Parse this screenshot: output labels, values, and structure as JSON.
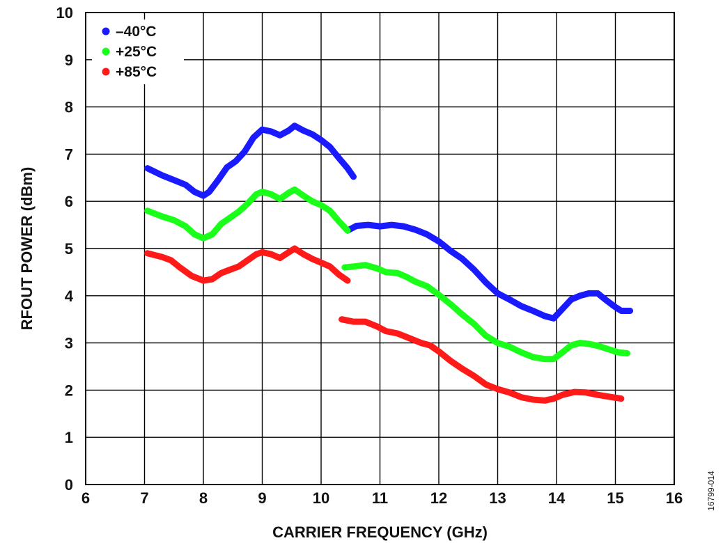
{
  "chart_data": {
    "type": "line",
    "title": "",
    "xlabel": "CARRIER FREQUENCY (GHz)",
    "ylabel": "RFOUT POWER (dBm)",
    "xlim": [
      6,
      16
    ],
    "ylim": [
      0,
      10
    ],
    "xticks": [
      "6",
      "7",
      "8",
      "9",
      "10",
      "11",
      "12",
      "13",
      "14",
      "15",
      "16"
    ],
    "yticks": [
      "0",
      "1",
      "2",
      "3",
      "4",
      "5",
      "6",
      "7",
      "8",
      "9",
      "10"
    ],
    "grid": true,
    "legend_position": "top-left",
    "figure_id": "16799-014",
    "series": [
      {
        "name": "–40°C",
        "color": "#1a1aff",
        "segments": [
          [
            [
              7.05,
              6.7
            ],
            [
              7.3,
              6.55
            ],
            [
              7.5,
              6.45
            ],
            [
              7.7,
              6.35
            ],
            [
              7.85,
              6.2
            ],
            [
              8.0,
              6.12
            ],
            [
              8.1,
              6.2
            ],
            [
              8.25,
              6.45
            ],
            [
              8.4,
              6.72
            ],
            [
              8.55,
              6.85
            ],
            [
              8.7,
              7.05
            ],
            [
              8.85,
              7.35
            ],
            [
              9.0,
              7.52
            ],
            [
              9.15,
              7.48
            ],
            [
              9.3,
              7.4
            ],
            [
              9.45,
              7.5
            ],
            [
              9.55,
              7.6
            ],
            [
              9.7,
              7.5
            ],
            [
              9.85,
              7.42
            ],
            [
              10.0,
              7.3
            ],
            [
              10.15,
              7.15
            ],
            [
              10.3,
              6.92
            ],
            [
              10.45,
              6.7
            ],
            [
              10.55,
              6.52
            ]
          ],
          [
            [
              10.45,
              5.38
            ],
            [
              10.6,
              5.48
            ],
            [
              10.8,
              5.5
            ],
            [
              11.0,
              5.47
            ],
            [
              11.2,
              5.5
            ],
            [
              11.4,
              5.47
            ],
            [
              11.6,
              5.4
            ],
            [
              11.8,
              5.3
            ],
            [
              12.0,
              5.15
            ],
            [
              12.2,
              4.95
            ],
            [
              12.4,
              4.78
            ],
            [
              12.6,
              4.55
            ],
            [
              12.8,
              4.28
            ],
            [
              13.0,
              4.05
            ],
            [
              13.2,
              3.92
            ],
            [
              13.4,
              3.78
            ],
            [
              13.6,
              3.68
            ],
            [
              13.8,
              3.57
            ],
            [
              13.95,
              3.52
            ],
            [
              14.1,
              3.72
            ],
            [
              14.25,
              3.92
            ],
            [
              14.4,
              4.0
            ],
            [
              14.55,
              4.05
            ],
            [
              14.7,
              4.05
            ],
            [
              14.85,
              3.9
            ],
            [
              15.0,
              3.76
            ],
            [
              15.1,
              3.68
            ],
            [
              15.25,
              3.68
            ]
          ]
        ]
      },
      {
        "name": "+25°C",
        "color": "#1aff1a",
        "segments": [
          [
            [
              7.05,
              5.8
            ],
            [
              7.3,
              5.68
            ],
            [
              7.5,
              5.6
            ],
            [
              7.7,
              5.47
            ],
            [
              7.85,
              5.3
            ],
            [
              8.0,
              5.22
            ],
            [
              8.15,
              5.3
            ],
            [
              8.3,
              5.52
            ],
            [
              8.45,
              5.65
            ],
            [
              8.6,
              5.78
            ],
            [
              8.75,
              5.95
            ],
            [
              8.9,
              6.15
            ],
            [
              9.0,
              6.2
            ],
            [
              9.15,
              6.15
            ],
            [
              9.3,
              6.05
            ],
            [
              9.45,
              6.18
            ],
            [
              9.55,
              6.25
            ],
            [
              9.7,
              6.12
            ],
            [
              9.85,
              6.0
            ],
            [
              10.0,
              5.92
            ],
            [
              10.15,
              5.8
            ],
            [
              10.3,
              5.58
            ],
            [
              10.45,
              5.38
            ]
          ],
          [
            [
              10.4,
              4.6
            ],
            [
              10.55,
              4.62
            ],
            [
              10.75,
              4.65
            ],
            [
              10.95,
              4.58
            ],
            [
              11.1,
              4.5
            ],
            [
              11.3,
              4.48
            ],
            [
              11.45,
              4.4
            ],
            [
              11.6,
              4.3
            ],
            [
              11.8,
              4.2
            ],
            [
              12.0,
              4.02
            ],
            [
              12.2,
              3.82
            ],
            [
              12.4,
              3.6
            ],
            [
              12.6,
              3.4
            ],
            [
              12.8,
              3.15
            ],
            [
              13.0,
              3.0
            ],
            [
              13.2,
              2.92
            ],
            [
              13.4,
              2.8
            ],
            [
              13.6,
              2.7
            ],
            [
              13.8,
              2.66
            ],
            [
              13.95,
              2.66
            ],
            [
              14.1,
              2.8
            ],
            [
              14.25,
              2.95
            ],
            [
              14.4,
              3.0
            ],
            [
              14.55,
              2.98
            ],
            [
              14.7,
              2.94
            ],
            [
              14.9,
              2.86
            ],
            [
              15.05,
              2.8
            ],
            [
              15.2,
              2.78
            ]
          ]
        ]
      },
      {
        "name": "+85°C",
        "color": "#ff1a1a",
        "segments": [
          [
            [
              7.05,
              4.9
            ],
            [
              7.3,
              4.82
            ],
            [
              7.45,
              4.75
            ],
            [
              7.6,
              4.6
            ],
            [
              7.8,
              4.42
            ],
            [
              8.0,
              4.32
            ],
            [
              8.15,
              4.35
            ],
            [
              8.3,
              4.48
            ],
            [
              8.45,
              4.55
            ],
            [
              8.6,
              4.62
            ],
            [
              8.75,
              4.75
            ],
            [
              8.9,
              4.88
            ],
            [
              9.0,
              4.92
            ],
            [
              9.15,
              4.88
            ],
            [
              9.3,
              4.8
            ],
            [
              9.45,
              4.92
            ],
            [
              9.55,
              5.0
            ],
            [
              9.7,
              4.88
            ],
            [
              9.85,
              4.78
            ],
            [
              10.0,
              4.7
            ],
            [
              10.15,
              4.62
            ],
            [
              10.3,
              4.45
            ],
            [
              10.45,
              4.32
            ]
          ],
          [
            [
              10.35,
              3.5
            ],
            [
              10.55,
              3.45
            ],
            [
              10.75,
              3.45
            ],
            [
              10.95,
              3.35
            ],
            [
              11.1,
              3.25
            ],
            [
              11.3,
              3.2
            ],
            [
              11.5,
              3.1
            ],
            [
              11.7,
              3.0
            ],
            [
              11.85,
              2.95
            ],
            [
              12.0,
              2.82
            ],
            [
              12.2,
              2.62
            ],
            [
              12.4,
              2.45
            ],
            [
              12.6,
              2.3
            ],
            [
              12.8,
              2.12
            ],
            [
              13.0,
              2.02
            ],
            [
              13.2,
              1.95
            ],
            [
              13.4,
              1.85
            ],
            [
              13.6,
              1.8
            ],
            [
              13.8,
              1.78
            ],
            [
              13.95,
              1.82
            ],
            [
              14.1,
              1.9
            ],
            [
              14.3,
              1.96
            ],
            [
              14.5,
              1.95
            ],
            [
              14.7,
              1.9
            ],
            [
              14.9,
              1.86
            ],
            [
              15.1,
              1.82
            ]
          ]
        ]
      }
    ]
  }
}
